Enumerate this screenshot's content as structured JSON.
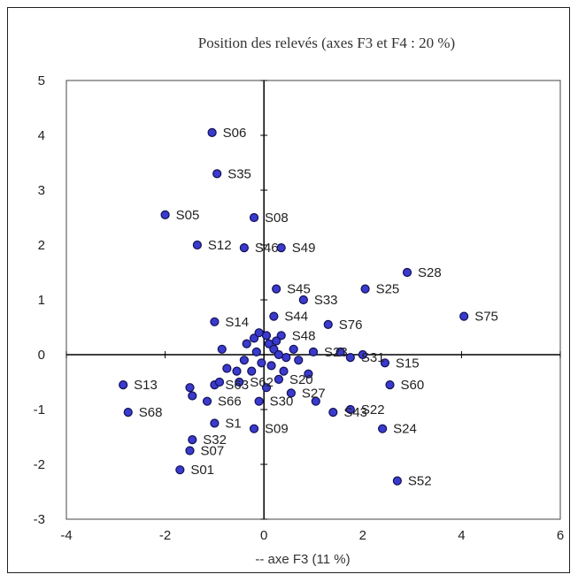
{
  "chart_data": {
    "type": "scatter",
    "title": "Position des relevés (axes F3 et F4 : 20 %)",
    "xlabel": "-- axe F3 (11 %)",
    "ylabel": "",
    "xlim": [
      -4,
      6
    ],
    "ylim": [
      -3,
      5
    ],
    "xticks": [
      -4,
      -2,
      0,
      2,
      4,
      6
    ],
    "yticks": [
      -3,
      -2,
      -1,
      0,
      1,
      2,
      3,
      4,
      5
    ],
    "grid": false,
    "series": [
      {
        "points": [
          {
            "label": "S06",
            "x": -1.05,
            "y": 4.05
          },
          {
            "label": "S35",
            "x": -0.95,
            "y": 3.3
          },
          {
            "label": "S05",
            "x": -2.0,
            "y": 2.55
          },
          {
            "label": "S08",
            "x": -0.2,
            "y": 2.5
          },
          {
            "label": "S12",
            "x": -1.35,
            "y": 2.0
          },
          {
            "label": "S46",
            "x": -0.4,
            "y": 1.95
          },
          {
            "label": "S49",
            "x": 0.35,
            "y": 1.95
          },
          {
            "label": "S28",
            "x": 2.9,
            "y": 1.5
          },
          {
            "label": "S45",
            "x": 0.25,
            "y": 1.2
          },
          {
            "label": "S25",
            "x": 2.05,
            "y": 1.2
          },
          {
            "label": "S33",
            "x": 0.8,
            "y": 1.0
          },
          {
            "label": "S75",
            "x": 4.05,
            "y": 0.7
          },
          {
            "label": "S14",
            "x": -1.0,
            "y": 0.6
          },
          {
            "label": "S44",
            "x": 0.2,
            "y": 0.7
          },
          {
            "label": "S76",
            "x": 1.3,
            "y": 0.55
          },
          {
            "label": "S15",
            "x": 2.45,
            "y": -0.15
          },
          {
            "label": "S13",
            "x": -2.85,
            "y": -0.55
          },
          {
            "label": "S60",
            "x": 2.55,
            "y": -0.55
          },
          {
            "label": "S68",
            "x": -2.75,
            "y": -1.05
          },
          {
            "label": "S22",
            "x": 1.75,
            "y": -1.0
          },
          {
            "label": "S43",
            "x": 1.4,
            "y": -1.05
          },
          {
            "label": "S24",
            "x": 2.4,
            "y": -1.35
          },
          {
            "label": "S09",
            "x": -0.2,
            "y": -1.35
          },
          {
            "label": "S07",
            "x": -1.5,
            "y": -1.75
          },
          {
            "label": "S01",
            "x": -1.7,
            "y": -2.1
          },
          {
            "label": "S52",
            "x": 2.7,
            "y": -2.3
          },
          {
            "label": "S32",
            "x": -1.45,
            "y": -1.55
          },
          {
            "label": "S66",
            "x": -1.15,
            "y": -0.85
          },
          {
            "label": "S30",
            "x": -0.1,
            "y": -0.85
          },
          {
            "label": "S27",
            "x": 0.55,
            "y": -0.7
          },
          {
            "label": "S20",
            "x": 0.3,
            "y": -0.45
          },
          {
            "label": "S31",
            "x": 1.75,
            "y": -0.05
          },
          {
            "label": "S23",
            "x": 1.0,
            "y": 0.05
          },
          {
            "label": "S48",
            "x": 0.35,
            "y": 0.35
          },
          {
            "label": "S62",
            "x": -0.5,
            "y": -0.5
          },
          {
            "label": "S63",
            "x": -1.0,
            "y": -0.55
          },
          {
            "label": "S1",
            "x": -1.0,
            "y": -1.25
          },
          {
            "label": "",
            "x": -1.5,
            "y": -0.6
          },
          {
            "label": "",
            "x": -1.45,
            "y": -0.75
          },
          {
            "label": "",
            "x": -0.9,
            "y": -0.5
          },
          {
            "label": "",
            "x": -0.75,
            "y": -0.25
          },
          {
            "label": "",
            "x": -0.85,
            "y": 0.1
          },
          {
            "label": "",
            "x": -0.35,
            "y": 0.2
          },
          {
            "label": "",
            "x": -0.2,
            "y": 0.3
          },
          {
            "label": "",
            "x": -0.1,
            "y": 0.4
          },
          {
            "label": "",
            "x": 0.05,
            "y": 0.35
          },
          {
            "label": "",
            "x": 0.1,
            "y": 0.2
          },
          {
            "label": "",
            "x": 0.2,
            "y": 0.1
          },
          {
            "label": "",
            "x": 0.3,
            "y": 0.0
          },
          {
            "label": "",
            "x": 0.45,
            "y": -0.05
          },
          {
            "label": "",
            "x": 0.6,
            "y": 0.1
          },
          {
            "label": "",
            "x": 0.7,
            "y": -0.1
          },
          {
            "label": "",
            "x": 0.15,
            "y": -0.2
          },
          {
            "label": "",
            "x": -0.05,
            "y": -0.15
          },
          {
            "label": "",
            "x": -0.25,
            "y": -0.3
          },
          {
            "label": "",
            "x": -0.4,
            "y": -0.1
          },
          {
            "label": "",
            "x": -0.55,
            "y": -0.3
          },
          {
            "label": "",
            "x": 0.05,
            "y": -0.6
          },
          {
            "label": "",
            "x": 0.4,
            "y": -0.3
          },
          {
            "label": "",
            "x": 0.9,
            "y": -0.35
          },
          {
            "label": "",
            "x": 1.05,
            "y": -0.85
          },
          {
            "label": "",
            "x": 1.55,
            "y": 0.05
          },
          {
            "label": "",
            "x": 2.0,
            "y": 0.0
          },
          {
            "label": "",
            "x": -0.15,
            "y": 0.05
          },
          {
            "label": "",
            "x": 0.25,
            "y": 0.25
          }
        ]
      }
    ],
    "marker_color": "#3a3acd"
  }
}
